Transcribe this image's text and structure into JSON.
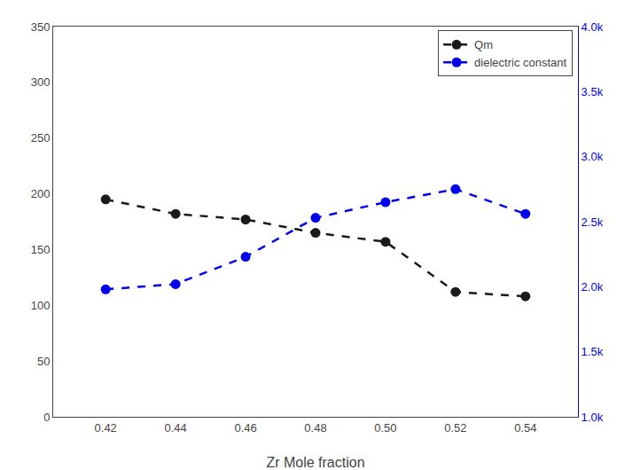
{
  "chart_data": {
    "type": "line",
    "xlabel": "Zr Mole fraction",
    "x": [
      0.42,
      0.44,
      0.46,
      0.48,
      0.5,
      0.52,
      0.54
    ],
    "series": [
      {
        "name": "Qm",
        "color": "#1a1a1a",
        "values": [
          195,
          182,
          177,
          165,
          157,
          112,
          108
        ],
        "line_style": "dashed",
        "marker": "circle"
      },
      {
        "name": "dielectric constant",
        "color": "#0000ee",
        "values": [
          1980,
          2020,
          2230,
          2530,
          2650,
          2750,
          2560
        ],
        "axis": "y2",
        "line_style": "dashed",
        "marker": "circle"
      }
    ],
    "xlim": [
      0.405,
      0.555
    ],
    "xticks": [
      0.42,
      0.44,
      0.46,
      0.48,
      {
        "value": 0.5,
        "label": "0.50"
      },
      0.52,
      0.54
    ],
    "ylim": [
      0,
      350
    ],
    "yticks": [
      0,
      50,
      100,
      150,
      200,
      250,
      300,
      350
    ],
    "y2lim": [
      1000,
      4000
    ],
    "y2ticks": [
      {
        "value": 1000,
        "label": "1.0k"
      },
      {
        "value": 1500,
        "label": "1.5k"
      },
      {
        "value": 2000,
        "label": "2.0k"
      },
      {
        "value": 2500,
        "label": "2.5k"
      },
      {
        "value": 3000,
        "label": "3.0k"
      },
      {
        "value": 3500,
        "label": "3.5k"
      },
      {
        "value": 4000,
        "label": "4.0k"
      }
    ],
    "grid": false,
    "legend": "upper right"
  }
}
